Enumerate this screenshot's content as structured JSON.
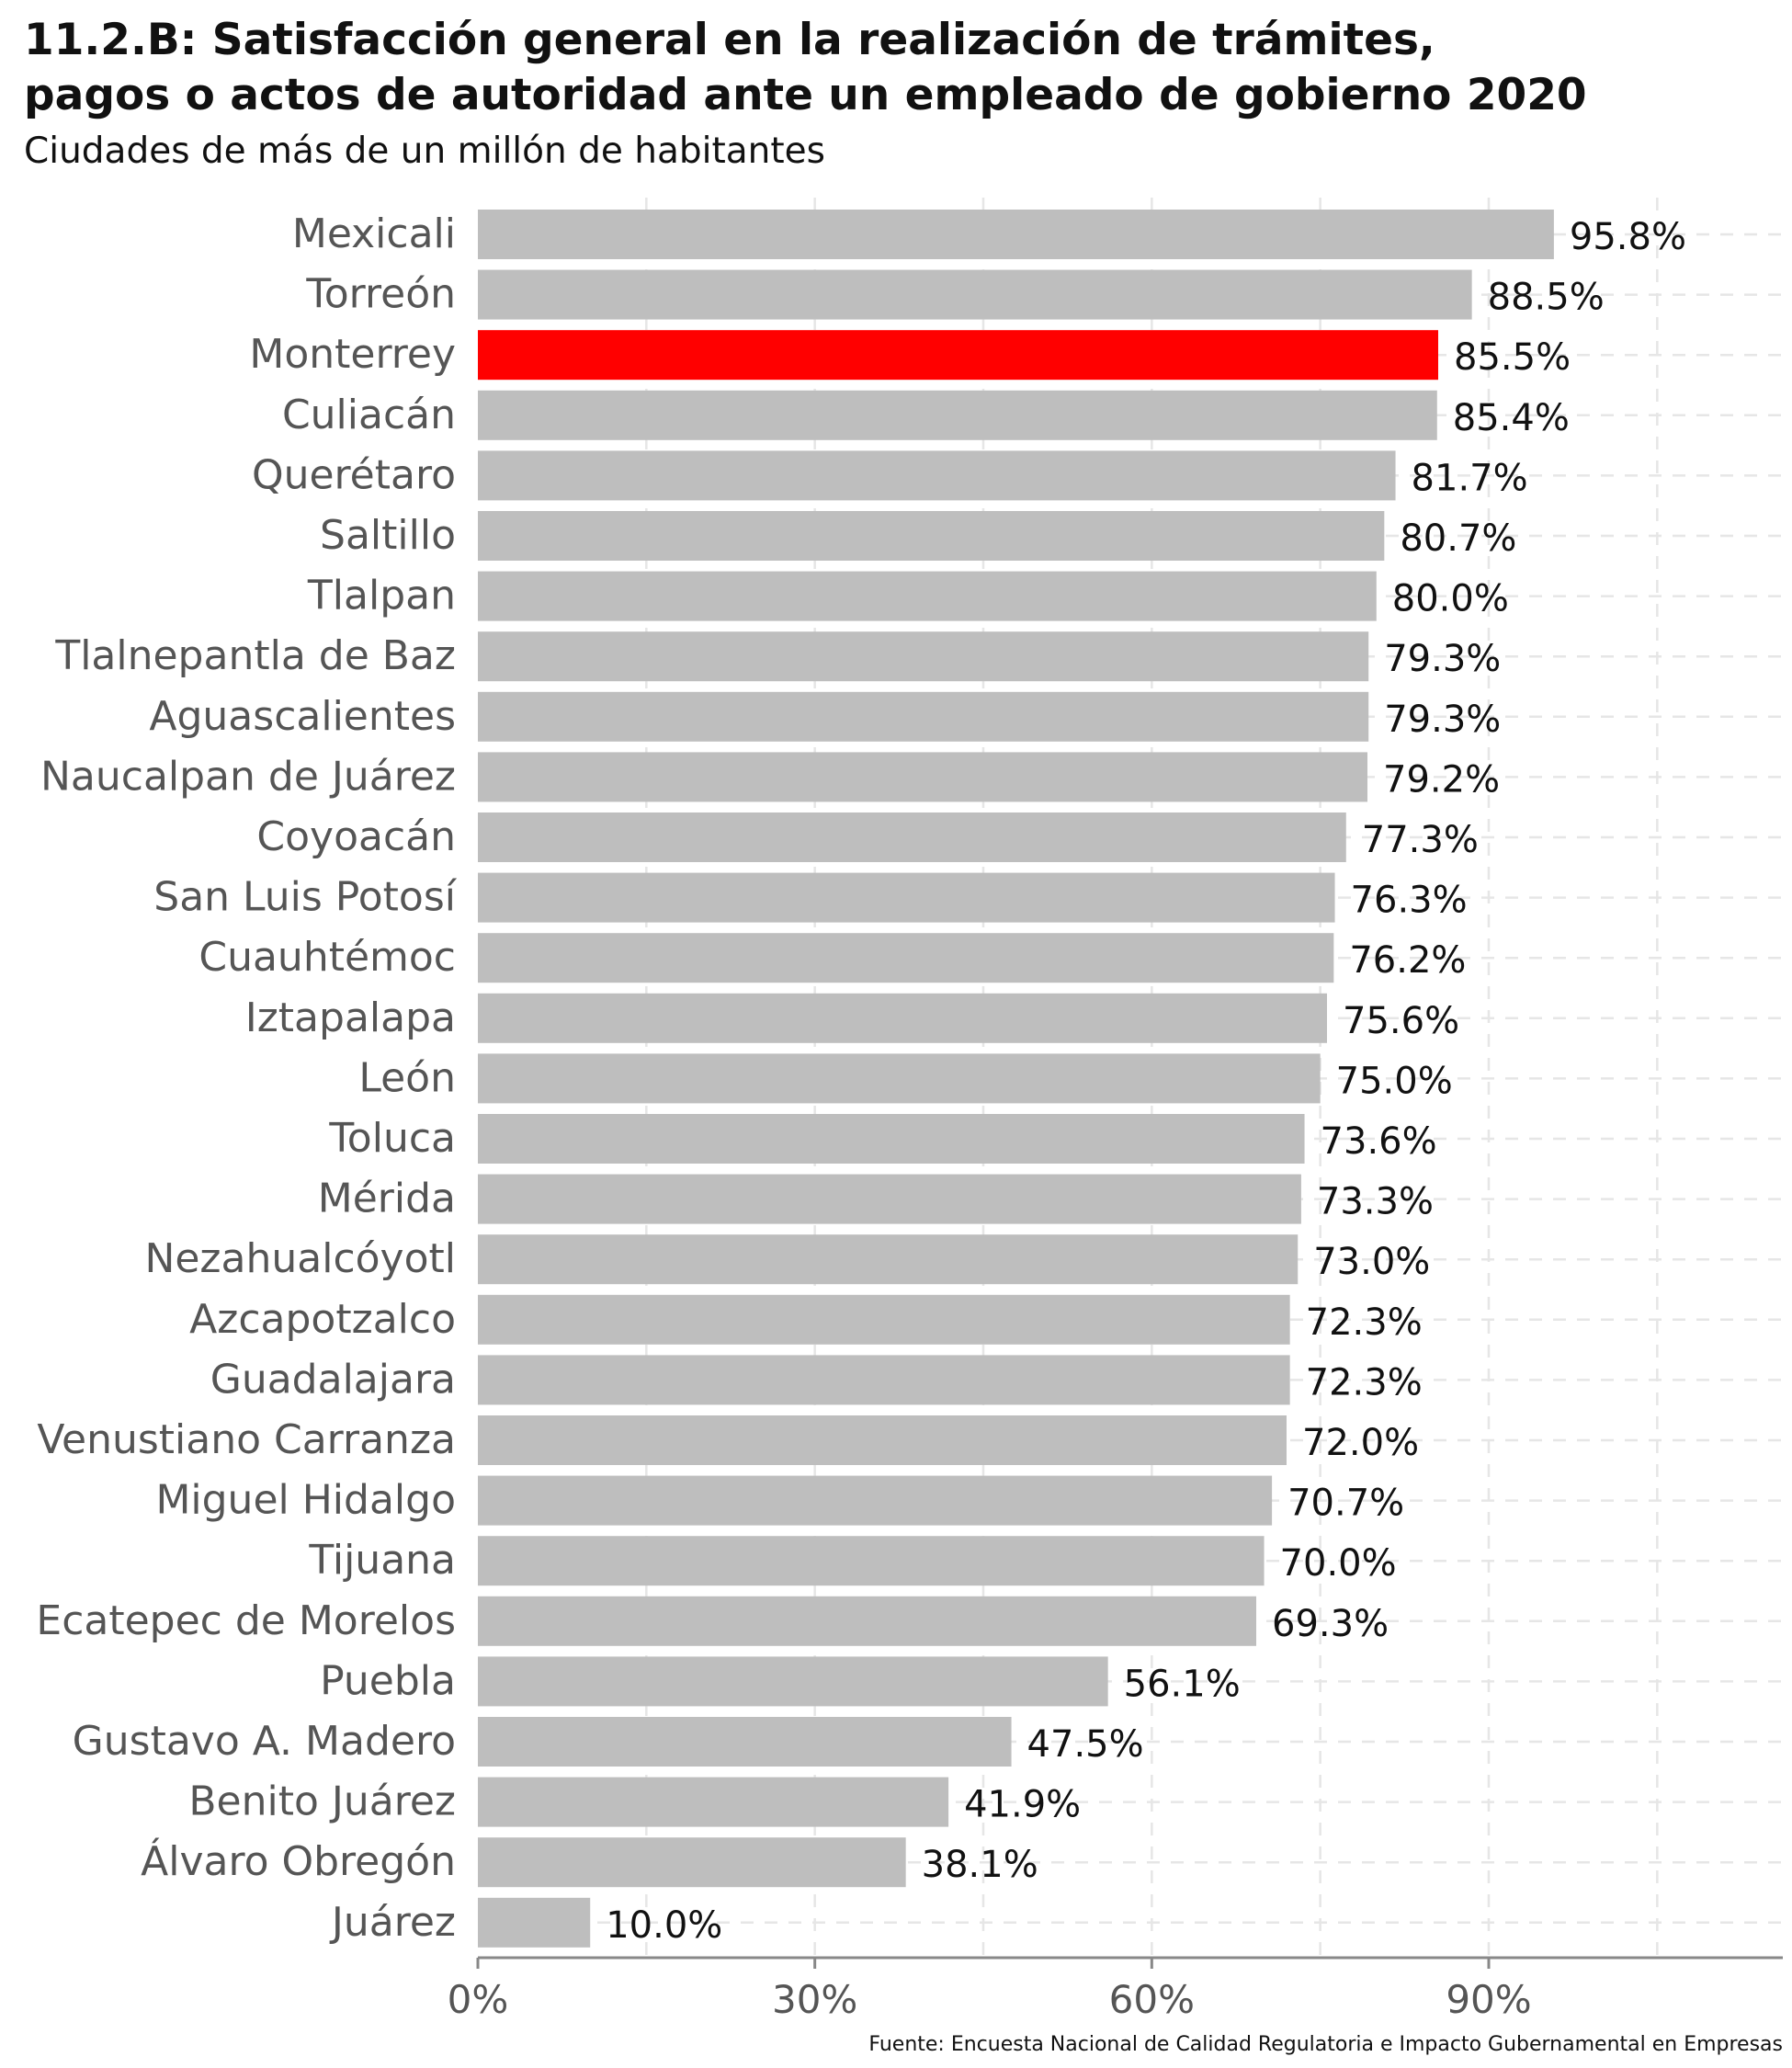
{
  "chart_data": {
    "type": "bar",
    "orientation": "horizontal",
    "title": "11.2.B: Satisfacción general en la realización de trámites,\npagos o actos de autoridad ante un empleado de gobierno 2020",
    "subtitle": "Ciudades de más de un millón de habitantes",
    "source": "Fuente: Encuesta Nacional de Calidad Regulatoria e Impacto Gubernamental en Empresas",
    "categories": [
      "Mexicali",
      "Torreón",
      "Monterrey",
      "Culiacán",
      "Querétaro",
      "Saltillo",
      "Tlalpan",
      "Tlalnepantla de Baz",
      "Aguascalientes",
      "Naucalpan de Juárez",
      "Coyoacán",
      "San Luis Potosí",
      "Cuauhtémoc",
      "Iztapalapa",
      "León",
      "Toluca",
      "Mérida",
      "Nezahualcóyotl",
      "Azcapotzalco",
      "Guadalajara",
      "Venustiano Carranza",
      "Miguel Hidalgo",
      "Tijuana",
      "Ecatepec de Morelos",
      "Puebla",
      "Gustavo A. Madero",
      "Benito Juárez",
      "Álvaro Obregón",
      "Juárez"
    ],
    "values": [
      95.8,
      88.5,
      85.5,
      85.4,
      81.7,
      80.7,
      80.0,
      79.3,
      79.3,
      79.2,
      77.3,
      76.3,
      76.2,
      75.6,
      75.0,
      73.6,
      73.3,
      73.0,
      72.3,
      72.3,
      72.0,
      70.7,
      70.0,
      69.3,
      56.1,
      47.5,
      41.9,
      38.1,
      10.0
    ],
    "value_labels": [
      "95.8%",
      "88.5%",
      "85.5%",
      "85.4%",
      "81.7%",
      "80.7%",
      "80.0%",
      "79.3%",
      "79.3%",
      "79.2%",
      "77.3%",
      "76.3%",
      "76.2%",
      "75.6%",
      "75.0%",
      "73.6%",
      "73.3%",
      "73.0%",
      "72.3%",
      "72.3%",
      "72.0%",
      "70.7%",
      "70.0%",
      "69.3%",
      "56.1%",
      "47.5%",
      "41.9%",
      "38.1%",
      "10.0%"
    ],
    "highlight": "Monterrey",
    "colors": {
      "bar": "#bebebe",
      "highlight": "#ff0000",
      "grid": "#e6e6e6",
      "axis": "#888888"
    },
    "xlim": [
      0,
      115
    ],
    "xticks": [
      0,
      30,
      60,
      90
    ],
    "xtick_labels": [
      "0%",
      "30%",
      "60%",
      "90%"
    ],
    "grid": "vertical dashed"
  }
}
